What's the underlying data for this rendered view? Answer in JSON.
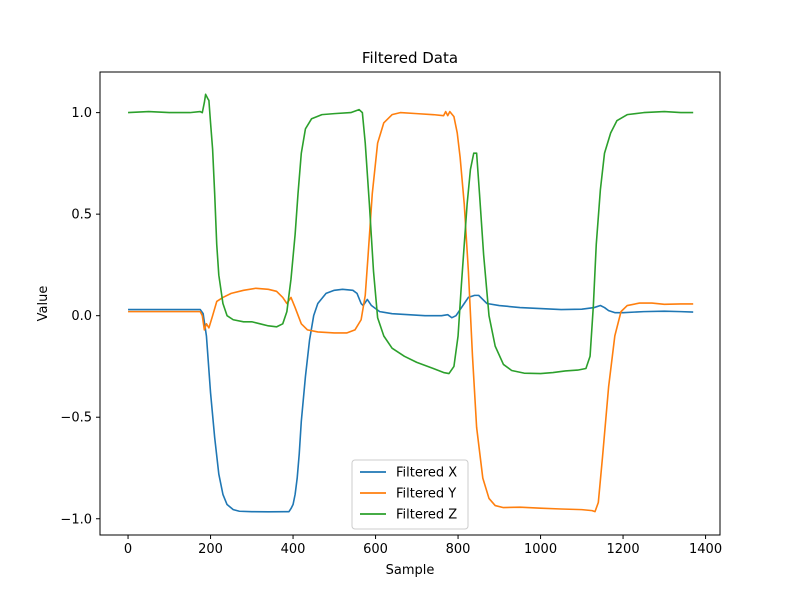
{
  "chart_data": {
    "type": "line",
    "title": "Filtered Data",
    "xlabel": "Sample",
    "ylabel": "Value",
    "xlim": [
      -68,
      1435
    ],
    "ylim": [
      -1.08,
      1.2
    ],
    "xticks": [
      0,
      200,
      400,
      600,
      800,
      1000,
      1200,
      1400
    ],
    "yticks": [
      -1.0,
      -0.5,
      0.0,
      0.5,
      1.0
    ],
    "xtick_labels": [
      "0",
      "200",
      "400",
      "600",
      "800",
      "1000",
      "1200",
      "1400"
    ],
    "ytick_labels": [
      "−1.0",
      "−0.5",
      "0.0",
      "0.5",
      "1.0"
    ],
    "grid": false,
    "legend_position": "lower center",
    "series": [
      {
        "name": "Filtered X",
        "color": "#1f77b4",
        "points": [
          [
            0,
            0.03
          ],
          [
            100,
            0.03
          ],
          [
            175,
            0.03
          ],
          [
            182,
            0.01
          ],
          [
            190,
            -0.1
          ],
          [
            200,
            -0.38
          ],
          [
            210,
            -0.6
          ],
          [
            220,
            -0.78
          ],
          [
            230,
            -0.88
          ],
          [
            240,
            -0.93
          ],
          [
            255,
            -0.955
          ],
          [
            270,
            -0.963
          ],
          [
            300,
            -0.965
          ],
          [
            340,
            -0.966
          ],
          [
            380,
            -0.965
          ],
          [
            390,
            -0.965
          ],
          [
            395,
            -0.95
          ],
          [
            400,
            -0.93
          ],
          [
            405,
            -0.88
          ],
          [
            410,
            -0.8
          ],
          [
            415,
            -0.68
          ],
          [
            420,
            -0.52
          ],
          [
            430,
            -0.3
          ],
          [
            440,
            -0.12
          ],
          [
            450,
            0.0
          ],
          [
            460,
            0.06
          ],
          [
            480,
            0.11
          ],
          [
            500,
            0.125
          ],
          [
            520,
            0.13
          ],
          [
            545,
            0.125
          ],
          [
            555,
            0.11
          ],
          [
            565,
            0.06
          ],
          [
            570,
            0.05
          ],
          [
            580,
            0.08
          ],
          [
            590,
            0.05
          ],
          [
            610,
            0.02
          ],
          [
            640,
            0.01
          ],
          [
            680,
            0.005
          ],
          [
            720,
            0.0
          ],
          [
            760,
            0.0
          ],
          [
            775,
            0.005
          ],
          [
            785,
            -0.01
          ],
          [
            795,
            0.0
          ],
          [
            805,
            0.03
          ],
          [
            815,
            0.06
          ],
          [
            825,
            0.09
          ],
          [
            840,
            0.1
          ],
          [
            850,
            0.1
          ],
          [
            860,
            0.08
          ],
          [
            870,
            0.06
          ],
          [
            900,
            0.05
          ],
          [
            950,
            0.04
          ],
          [
            1000,
            0.035
          ],
          [
            1050,
            0.03
          ],
          [
            1100,
            0.032
          ],
          [
            1130,
            0.04
          ],
          [
            1145,
            0.05
          ],
          [
            1155,
            0.04
          ],
          [
            1165,
            0.025
          ],
          [
            1180,
            0.015
          ],
          [
            1200,
            0.015
          ],
          [
            1250,
            0.02
          ],
          [
            1300,
            0.022
          ],
          [
            1340,
            0.02
          ],
          [
            1370,
            0.018
          ]
        ]
      },
      {
        "name": "Filtered Y",
        "color": "#ff7f0e",
        "points": [
          [
            0,
            0.02
          ],
          [
            100,
            0.02
          ],
          [
            175,
            0.02
          ],
          [
            180,
            0.0
          ],
          [
            185,
            -0.07
          ],
          [
            190,
            -0.04
          ],
          [
            196,
            -0.06
          ],
          [
            205,
            0.0
          ],
          [
            215,
            0.07
          ],
          [
            230,
            0.09
          ],
          [
            250,
            0.11
          ],
          [
            280,
            0.125
          ],
          [
            310,
            0.135
          ],
          [
            340,
            0.13
          ],
          [
            360,
            0.12
          ],
          [
            375,
            0.09
          ],
          [
            385,
            0.06
          ],
          [
            395,
            0.09
          ],
          [
            405,
            0.04
          ],
          [
            420,
            -0.04
          ],
          [
            435,
            -0.07
          ],
          [
            460,
            -0.08
          ],
          [
            500,
            -0.085
          ],
          [
            530,
            -0.085
          ],
          [
            550,
            -0.07
          ],
          [
            565,
            -0.02
          ],
          [
            575,
            0.1
          ],
          [
            582,
            0.3
          ],
          [
            592,
            0.6
          ],
          [
            605,
            0.85
          ],
          [
            620,
            0.95
          ],
          [
            640,
            0.99
          ],
          [
            660,
            1.0
          ],
          [
            700,
            0.995
          ],
          [
            740,
            0.99
          ],
          [
            765,
            0.985
          ],
          [
            770,
            1.005
          ],
          [
            775,
            0.985
          ],
          [
            780,
            1.005
          ],
          [
            790,
            0.98
          ],
          [
            798,
            0.9
          ],
          [
            805,
            0.78
          ],
          [
            815,
            0.55
          ],
          [
            825,
            0.22
          ],
          [
            835,
            -0.2
          ],
          [
            845,
            -0.55
          ],
          [
            860,
            -0.8
          ],
          [
            875,
            -0.9
          ],
          [
            890,
            -0.935
          ],
          [
            910,
            -0.945
          ],
          [
            950,
            -0.943
          ],
          [
            1000,
            -0.948
          ],
          [
            1050,
            -0.952
          ],
          [
            1100,
            -0.955
          ],
          [
            1125,
            -0.96
          ],
          [
            1132,
            -0.965
          ],
          [
            1140,
            -0.92
          ],
          [
            1150,
            -0.7
          ],
          [
            1165,
            -0.35
          ],
          [
            1180,
            -0.1
          ],
          [
            1195,
            0.02
          ],
          [
            1210,
            0.05
          ],
          [
            1240,
            0.062
          ],
          [
            1270,
            0.062
          ],
          [
            1300,
            0.056
          ],
          [
            1340,
            0.058
          ],
          [
            1370,
            0.058
          ]
        ]
      },
      {
        "name": "Filtered Z",
        "color": "#2ca02c",
        "points": [
          [
            0,
            1.0
          ],
          [
            50,
            1.005
          ],
          [
            100,
            1.0
          ],
          [
            150,
            1.0
          ],
          [
            175,
            1.005
          ],
          [
            180,
            1.0
          ],
          [
            185,
            1.05
          ],
          [
            188,
            1.09
          ],
          [
            193,
            1.07
          ],
          [
            196,
            1.06
          ],
          [
            200,
            0.95
          ],
          [
            205,
            0.82
          ],
          [
            210,
            0.6
          ],
          [
            215,
            0.35
          ],
          [
            220,
            0.2
          ],
          [
            230,
            0.06
          ],
          [
            240,
            0.0
          ],
          [
            255,
            -0.02
          ],
          [
            280,
            -0.03
          ],
          [
            300,
            -0.03
          ],
          [
            320,
            -0.04
          ],
          [
            340,
            -0.05
          ],
          [
            360,
            -0.055
          ],
          [
            375,
            -0.04
          ],
          [
            385,
            0.02
          ],
          [
            395,
            0.18
          ],
          [
            405,
            0.4
          ],
          [
            412,
            0.6
          ],
          [
            420,
            0.8
          ],
          [
            430,
            0.92
          ],
          [
            445,
            0.97
          ],
          [
            470,
            0.99
          ],
          [
            500,
            0.995
          ],
          [
            540,
            1.0
          ],
          [
            560,
            1.015
          ],
          [
            568,
            1.0
          ],
          [
            575,
            0.85
          ],
          [
            585,
            0.55
          ],
          [
            595,
            0.22
          ],
          [
            605,
            -0.01
          ],
          [
            620,
            -0.1
          ],
          [
            640,
            -0.16
          ],
          [
            670,
            -0.2
          ],
          [
            700,
            -0.23
          ],
          [
            740,
            -0.26
          ],
          [
            765,
            -0.28
          ],
          [
            778,
            -0.285
          ],
          [
            790,
            -0.25
          ],
          [
            800,
            -0.1
          ],
          [
            808,
            0.15
          ],
          [
            815,
            0.35
          ],
          [
            822,
            0.55
          ],
          [
            830,
            0.72
          ],
          [
            838,
            0.8
          ],
          [
            845,
            0.8
          ],
          [
            852,
            0.6
          ],
          [
            862,
            0.3
          ],
          [
            875,
            0.0
          ],
          [
            890,
            -0.15
          ],
          [
            910,
            -0.24
          ],
          [
            930,
            -0.27
          ],
          [
            960,
            -0.283
          ],
          [
            1000,
            -0.285
          ],
          [
            1030,
            -0.28
          ],
          [
            1060,
            -0.272
          ],
          [
            1090,
            -0.268
          ],
          [
            1110,
            -0.26
          ],
          [
            1120,
            -0.2
          ],
          [
            1128,
            0.05
          ],
          [
            1135,
            0.35
          ],
          [
            1145,
            0.62
          ],
          [
            1155,
            0.8
          ],
          [
            1170,
            0.9
          ],
          [
            1185,
            0.96
          ],
          [
            1210,
            0.99
          ],
          [
            1250,
            1.0
          ],
          [
            1300,
            1.005
          ],
          [
            1340,
            1.0
          ],
          [
            1370,
            1.0
          ]
        ]
      }
    ]
  }
}
